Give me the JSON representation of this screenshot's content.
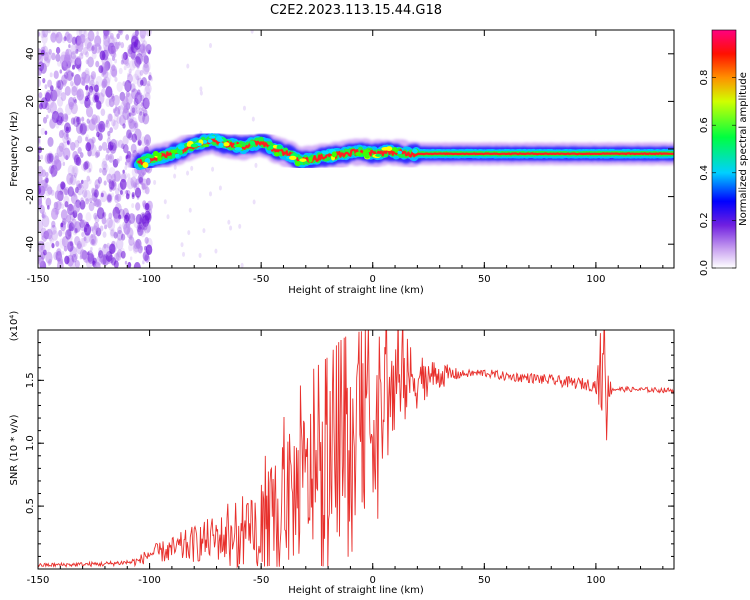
{
  "chart_data": [
    {
      "type": "heatmap",
      "title": "C2E2.2023.113.15.44.G18",
      "xlabel": "Height of straight line (km)",
      "ylabel": "Frequency (Hz)",
      "xlim": [
        -150,
        135
      ],
      "ylim": [
        -50,
        50
      ],
      "xticks": [
        -150,
        -100,
        -50,
        0,
        50,
        100
      ],
      "yticks": [
        -40,
        -20,
        0,
        20,
        40
      ],
      "colorbar": {
        "label": "Normalized spectral amplitude",
        "range": [
          0,
          1
        ],
        "ticks": [
          "0.0",
          "0.2",
          "0.4",
          "0.6",
          "0.8"
        ],
        "colormap": [
          "#ffffff",
          "#8a2be2",
          "#0000ff",
          "#00ffff",
          "#00ff00",
          "#ffff00",
          "#ff8000",
          "#ff0000",
          "#ff0080"
        ]
      },
      "ridge": {
        "x": [
          -105,
          -98,
          -90,
          -82,
          -76,
          -72,
          -66,
          -58,
          -50,
          -44,
          -38,
          -32,
          -26,
          -20,
          -12,
          -5,
          0,
          8,
          15,
          25,
          60,
          100,
          135
        ],
        "freq": [
          -6,
          -4,
          -2,
          1,
          3,
          4,
          2,
          1,
          3,
          0,
          -2,
          -5,
          -4,
          -3,
          -2,
          -1,
          -2,
          -1,
          -2,
          -2,
          -2,
          -2,
          -2
        ]
      },
      "noise_region": {
        "x_from": -150,
        "x_to": -105
      }
    },
    {
      "type": "line",
      "xlabel": "Height of straight line (km)",
      "ylabel": "SNR (10 * v/v)",
      "scale_label": "(x10⁴)",
      "xlim": [
        -150,
        135
      ],
      "ylim": [
        0,
        19000
      ],
      "xticks": [
        -150,
        -100,
        -50,
        0,
        50,
        100
      ],
      "yticks": [
        5000,
        10000,
        15000
      ],
      "ytick_labels": [
        "0.5",
        "1.0",
        "1.5"
      ],
      "color": "#e8302c",
      "envelope": {
        "x": [
          -150,
          -120,
          -105,
          -100,
          -90,
          -80,
          -70,
          -60,
          -50,
          -40,
          -30,
          -20,
          -10,
          -5,
          0,
          5,
          10,
          15,
          20,
          30,
          50,
          60,
          70,
          80,
          90,
          100,
          104,
          106,
          110,
          135
        ],
        "y": [
          300,
          400,
          600,
          1200,
          1500,
          2000,
          2500,
          2200,
          3000,
          5000,
          7000,
          8000,
          10000,
          10500,
          11500,
          13500,
          14000,
          15000,
          15200,
          15400,
          15600,
          15300,
          15200,
          15000,
          14800,
          14600,
          14500,
          14400,
          14300,
          14200
        ]
      },
      "spike_amplitude": {
        "x": [
          -150,
          -110,
          -100,
          -80,
          -60,
          -45,
          -30,
          -15,
          -5,
          5,
          15,
          25,
          40,
          100,
          102,
          104,
          106,
          110,
          135
        ],
        "amp": [
          150,
          200,
          600,
          1500,
          2200,
          4500,
          6000,
          6500,
          6000,
          6000,
          3500,
          1500,
          300,
          500,
          3000,
          4500,
          800,
          200,
          200
        ]
      }
    }
  ]
}
